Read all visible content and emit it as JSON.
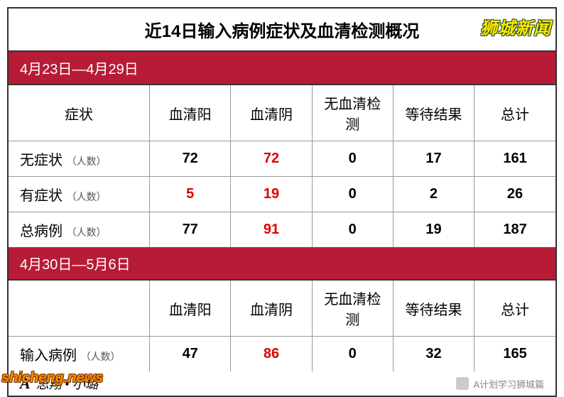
{
  "title": "近14日输入病例症状及血清检测概况",
  "section1_header": "4月23日—4月29日",
  "section2_header": "4月30日—5月6日",
  "columns": {
    "label": "症状",
    "c1": "血清阳",
    "c2": "血清阴",
    "c3": "无血清检测",
    "c4": "等待结果",
    "c5": "总计"
  },
  "section1_rows": [
    {
      "label": "无症状",
      "sublabel": "（人数）",
      "c1": "72",
      "c1_style": "bold",
      "c2": "72",
      "c2_style": "red",
      "c3": "0",
      "c4": "17",
      "c5": "161"
    },
    {
      "label": "有症状",
      "sublabel": "（人数）",
      "c1": "5",
      "c1_style": "red",
      "c2": "19",
      "c2_style": "red",
      "c3": "0",
      "c4": "2",
      "c5": "26"
    },
    {
      "label": "总病例",
      "sublabel": "（人数）",
      "c1": "77",
      "c1_style": "bold",
      "c2": "91",
      "c2_style": "red",
      "c3": "0",
      "c4": "19",
      "c5": "187"
    }
  ],
  "section2_columns": {
    "label": "",
    "c1": "血清阳",
    "c2": "血清阴",
    "c3": "无血清检测",
    "c4": "等待结果",
    "c5": "总计"
  },
  "section2_rows": [
    {
      "label": "输入病例",
      "sublabel": "（人数）",
      "c1": "47",
      "c1_style": "bold",
      "c2": "86",
      "c2_style": "red",
      "c3": "0",
      "c4": "32",
      "c5": "165"
    }
  ],
  "footer_logo": "A",
  "footer_author": "思翔 • 小璐",
  "footer_channel": "A计划学习狮城篇",
  "watermark_top": "狮城新闻",
  "watermark_bottom": "shicheng.news",
  "colors": {
    "section_bg": "#b71c36",
    "border": "#333333",
    "red_text": "#dd0000",
    "wm_top_fill": "#ffe600",
    "wm_top_stroke": "#1a4d1a",
    "wm_bot_fill": "#ff8800"
  }
}
